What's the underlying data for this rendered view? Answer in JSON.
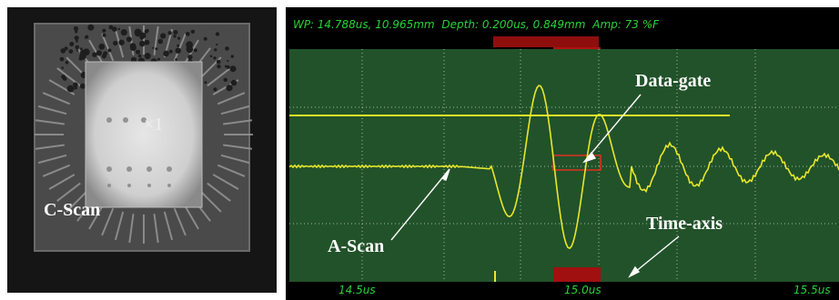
{
  "cscan": {
    "label": "C-Scan",
    "marker": "×1"
  },
  "scope": {
    "status": {
      "wp": "WP: 14.788us, 10.965mm",
      "depth": "Depth: 0.200us, 0.849mm",
      "amp": "Amp:   73 %F"
    },
    "time_axis": [
      "14.5us",
      "15.0us",
      "15.5us"
    ],
    "colors": {
      "background": "#22522a",
      "grid": "#9fbf9f",
      "signal": "#e8e82a",
      "text": "#29d23a",
      "gate": "#e0301e",
      "marker": "#a01010"
    }
  },
  "annotations": {
    "data_gate": "Data-gate",
    "ascan": "A-Scan",
    "time_axis": "Time-axis"
  }
}
